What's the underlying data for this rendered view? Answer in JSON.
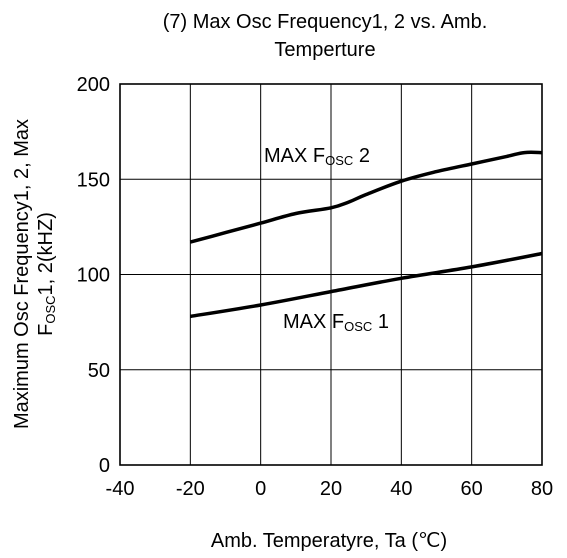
{
  "chart_data": {
    "type": "line",
    "title_line1": "(7) Max Osc Frequency1, 2 vs. Amb.",
    "title_line2": "Temperture",
    "xlabel": "Amb. Temperatyre, Ta (℃)",
    "ylabel_line1": "Maximum Osc Frequency1, 2, Max",
    "ylabel_line2_pre": "F",
    "ylabel_line2_sub": "OSC",
    "ylabel_line2_post": "1, 2(kHZ)",
    "xlim": [
      -40,
      80
    ],
    "ylim": [
      0,
      200
    ],
    "xticks": [
      -40,
      -20,
      0,
      20,
      40,
      60,
      80
    ],
    "yticks": [
      0,
      50,
      100,
      150,
      200
    ],
    "grid": true,
    "series": [
      {
        "label_pre": "MAX F",
        "label_sub": "OSC",
        "label_post": " 2",
        "x": [
          -20,
          -10,
          0,
          10,
          20,
          25,
          30,
          40,
          50,
          60,
          70,
          75,
          80
        ],
        "y": [
          117,
          122,
          127,
          132,
          135,
          138,
          142,
          149,
          154,
          158,
          162,
          164,
          164
        ]
      },
      {
        "label_pre": "MAX F",
        "label_sub": "OSC",
        "label_post": " 1",
        "x": [
          -20,
          0,
          20,
          40,
          60,
          80
        ],
        "y": [
          78,
          84,
          91,
          98,
          104,
          111
        ]
      }
    ],
    "colors": {
      "line": "#000000",
      "grid": "#000000",
      "background": "#ffffff"
    }
  }
}
